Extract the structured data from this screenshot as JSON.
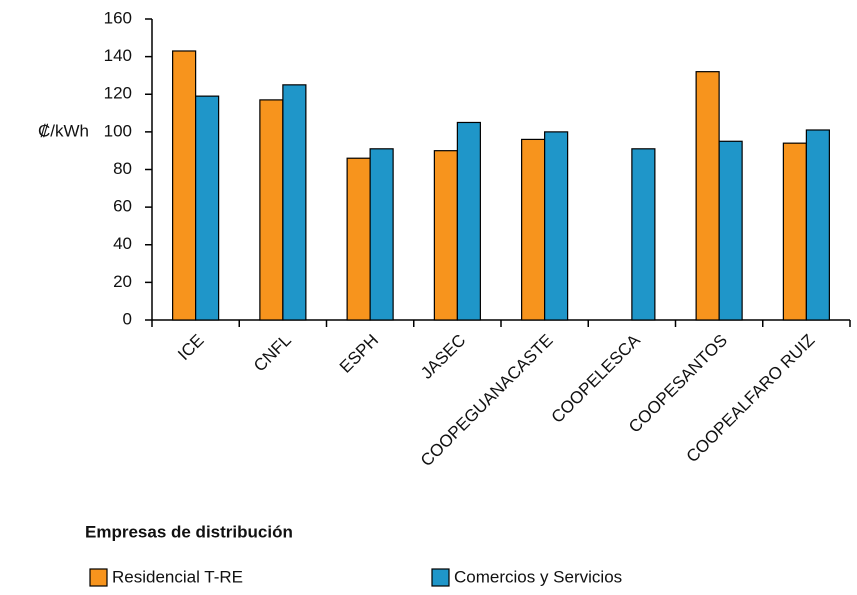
{
  "chart_data": {
    "type": "bar",
    "ylabel": "₡/kWh",
    "xlabel": "Empresas de distribución",
    "categories": [
      "ICE",
      "CNFL",
      "ESPH",
      "JASEC",
      "COOPEGUANACASTE",
      "COOPELESCA",
      "COOPESANTOS",
      "COOPEALFARO RUIZ"
    ],
    "series": [
      {
        "name": "Residencial T-RE",
        "color": "#f7941d",
        "values": [
          143,
          117,
          86,
          90,
          96,
          null,
          132,
          94
        ]
      },
      {
        "name": "Comercios y Servicios",
        "color": "#1f96c9",
        "values": [
          119,
          125,
          91,
          105,
          100,
          91,
          95,
          101
        ]
      }
    ],
    "ylim": [
      0,
      160
    ],
    "yticks": [
      0,
      20,
      40,
      60,
      80,
      100,
      120,
      140,
      160
    ],
    "grid": false
  }
}
